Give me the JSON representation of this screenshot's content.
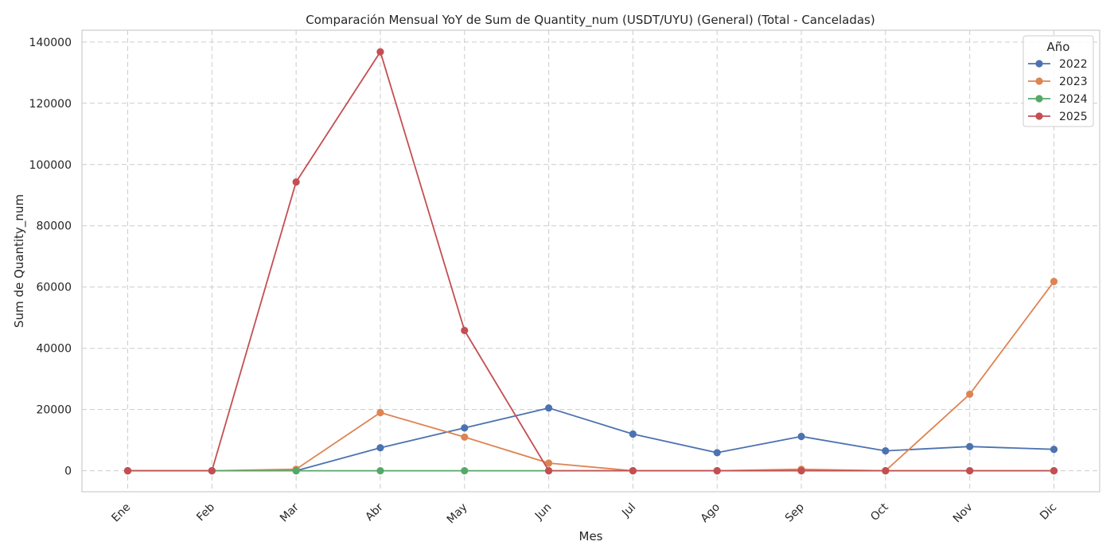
{
  "chart_data": {
    "type": "line",
    "title": "Comparación Mensual YoY de Sum de Quantity_num (USDT/UYU) (General) (Total - Canceladas)",
    "xlabel": "Mes",
    "ylabel": "Sum de Quantity_num",
    "categories": [
      "Ene",
      "Feb",
      "Mar",
      "Abr",
      "May",
      "Jun",
      "Jul",
      "Ago",
      "Sep",
      "Oct",
      "Nov",
      "Dic"
    ],
    "ylim": [
      -6850,
      143850
    ],
    "yticks": [
      0,
      20000,
      40000,
      60000,
      80000,
      100000,
      120000,
      140000
    ],
    "grid": true,
    "legend": {
      "title": "Año",
      "position": "top-right"
    },
    "series": [
      {
        "name": "2022",
        "color": "#4c72b0",
        "values": [
          0,
          0,
          0,
          7500,
          14000,
          20500,
          12000,
          5900,
          11200,
          6500,
          7900,
          7000
        ]
      },
      {
        "name": "2023",
        "color": "#dd8452",
        "values": [
          0,
          0,
          500,
          19000,
          11000,
          2500,
          0,
          0,
          500,
          0,
          25000,
          61800
        ]
      },
      {
        "name": "2024",
        "color": "#55a868",
        "values": [
          0,
          0,
          0,
          0,
          0,
          0,
          0,
          0,
          0,
          0,
          0,
          0
        ]
      },
      {
        "name": "2025",
        "color": "#c44e52",
        "values": [
          0,
          0,
          94300,
          136800,
          45800,
          0,
          0,
          0,
          0,
          0,
          0,
          0
        ]
      }
    ]
  }
}
